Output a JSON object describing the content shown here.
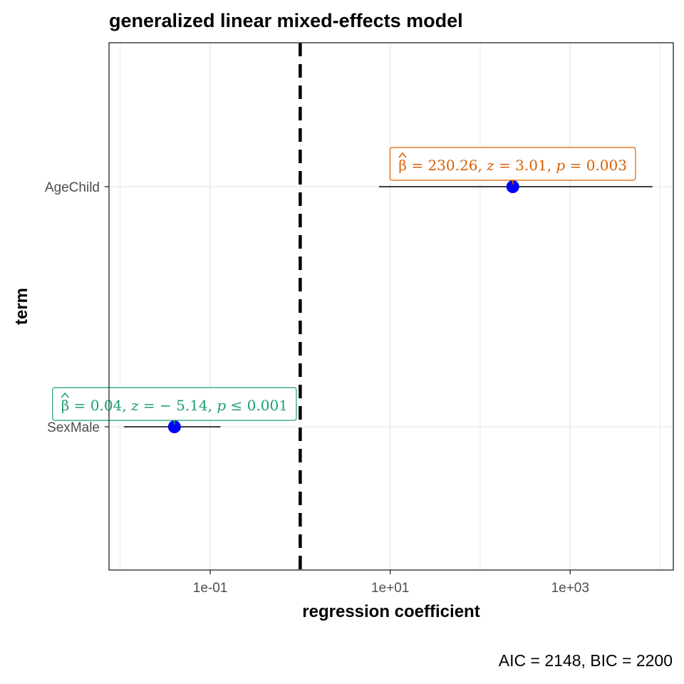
{
  "chart_data": {
    "type": "scatter",
    "subtype": "coefficient-plot",
    "title": "generalized linear mixed-effects model",
    "xlabel": "regression coefficient",
    "ylabel": "term",
    "caption": "AIC = 2148, BIC = 2200",
    "x_scale": "log10",
    "xlim": [
      0.0075,
      14000
    ],
    "x_ticks": [
      {
        "value": 0.1,
        "label": "1e-01"
      },
      {
        "value": 10,
        "label": "1e+01"
      },
      {
        "value": 1000,
        "label": "1e+03"
      }
    ],
    "x_minor_gridlines": [
      0.01,
      1,
      100,
      10000
    ],
    "reference_line": {
      "x": 1,
      "style": "dashed"
    },
    "grid": true,
    "terms": [
      {
        "term": "AgeChild",
        "estimate": 230.26,
        "conf_low": 7.5,
        "conf_high": 8200,
        "label": {
          "beta": "230.26",
          "z": "3.01",
          "p_op": "=",
          "p": "0.003"
        },
        "label_color": "#D95F02"
      },
      {
        "term": "SexMale",
        "estimate": 0.04,
        "conf_low": 0.011,
        "conf_high": 0.13,
        "label": {
          "beta": "0.04",
          "z": "− 5.14",
          "p_op": "≤",
          "p": "0.001"
        },
        "label_color": "#1B9E77"
      }
    ],
    "point_color": "#0000FF",
    "colors": {
      "grid": "#ebebeb",
      "panel_border": "#333333",
      "errorbar": "#000000"
    }
  }
}
